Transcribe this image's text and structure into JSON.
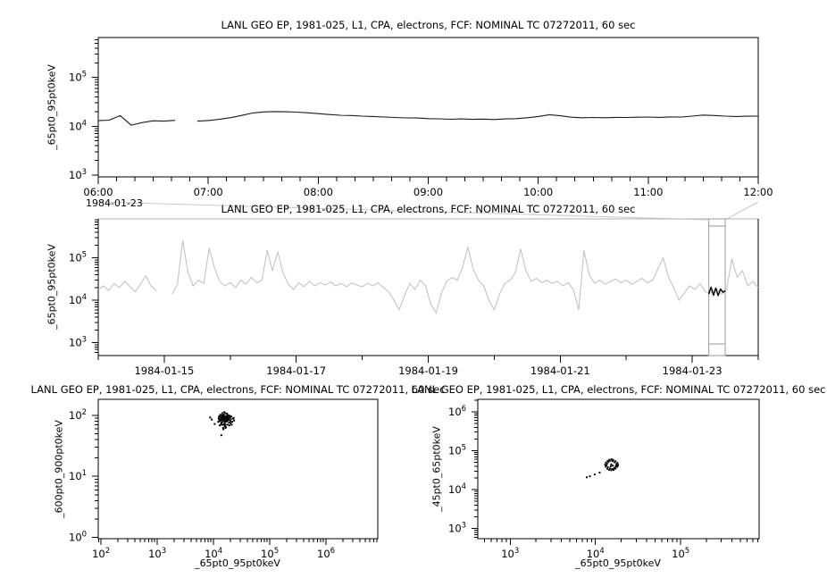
{
  "page": {
    "background": "#ffffff"
  },
  "colors": {
    "axis": "#000000",
    "top_series": "#1a1a1a",
    "overview_series": "#c4c4c4",
    "highlight_series": "#000000",
    "selection_box": "#ababab",
    "connector": "#c9c9c9"
  },
  "chart_data": [
    {
      "id": "top",
      "type": "line",
      "title": "LANL GEO EP, 1981-025, L1, CPA, electrons, FCF: NOMINAL TC 07272011, 60 sec",
      "ylabel": "_65pt0_95pt0keV",
      "x_context_label": "1984-01-23",
      "x_axis": {
        "min": 6,
        "max": 12,
        "major_step": 1,
        "minor_step": 0.16667,
        "tick_labels": [
          "06:00",
          "07:00",
          "08:00",
          "09:00",
          "10:00",
          "11:00",
          "12:00"
        ]
      },
      "y_axis": {
        "log": true,
        "min_exp": 2.96,
        "max_exp": 5.82,
        "decade_ticks": [
          3,
          4,
          5
        ]
      },
      "series": {
        "x_start": 6.0,
        "dx": 0.1,
        "values": [
          13000,
          13300,
          16500,
          10500,
          11900,
          12900,
          12700,
          13200,
          null,
          12700,
          13100,
          13800,
          14900,
          16600,
          18600,
          19600,
          20000,
          19800,
          19500,
          18900,
          18100,
          17400,
          16800,
          16600,
          16100,
          15800,
          15400,
          15100,
          14800,
          14700,
          14300,
          14200,
          13900,
          14100,
          13800,
          14000,
          13700,
          14100,
          14300,
          14900,
          15800,
          17200,
          16400,
          15300,
          14900,
          15100,
          14900,
          15200,
          15100,
          15300,
          15400,
          15200,
          15500,
          15400,
          16100,
          16900,
          16600,
          16100,
          15800,
          16000,
          16100
        ]
      }
    },
    {
      "id": "overview",
      "type": "line",
      "title": "LANL GEO EP, 1981-025, L1, CPA, electrons, FCF: NOMINAL TC 07272011, 60 sec",
      "ylabel": "_65pt0_95pt0keV",
      "x_axis": {
        "min": 14,
        "max": 24,
        "major_start": 15,
        "major_step": 2,
        "minor_step": 1,
        "tick_labels": [
          "1984-01-15",
          "1984-01-17",
          "1984-01-19",
          "1984-01-21",
          "1984-01-23"
        ]
      },
      "y_axis": {
        "log": true,
        "min_exp": 2.7,
        "max_exp": 5.92,
        "decade_ticks": [
          3,
          4,
          5
        ]
      },
      "series": {
        "x_start": 14.0,
        "dx": 0.08,
        "values": [
          18000,
          22000,
          17000,
          25000,
          20000,
          28000,
          21000,
          16000,
          24000,
          38000,
          22000,
          17000,
          null,
          null,
          14000,
          24000,
          260000,
          45000,
          22000,
          30000,
          25000,
          170000,
          60000,
          28000,
          22000,
          26000,
          20000,
          30000,
          24000,
          35000,
          26000,
          30000,
          150000,
          50000,
          140000,
          45000,
          24000,
          18000,
          26000,
          21000,
          28000,
          22000,
          26000,
          23000,
          27000,
          22000,
          25000,
          21000,
          26000,
          23000,
          21000,
          25000,
          22000,
          26000,
          20000,
          16000,
          10000,
          6000,
          13000,
          25000,
          18000,
          30000,
          22000,
          8000,
          5000,
          15000,
          28000,
          35000,
          30000,
          60000,
          180000,
          55000,
          30000,
          22000,
          10000,
          6000,
          14000,
          25000,
          30000,
          45000,
          160000,
          50000,
          28000,
          33000,
          26000,
          30000,
          25000,
          28000,
          22000,
          26000,
          18000,
          6000,
          150000,
          40000,
          25000,
          30000,
          24000,
          28000,
          32000,
          26000,
          30000,
          24000,
          28000,
          33000,
          26000,
          30000,
          55000,
          100000,
          35000,
          20000,
          10000,
          15000,
          22000,
          18000,
          25000,
          16000,
          15000,
          19000,
          14000,
          17000,
          95000,
          35000,
          50000,
          22000,
          28000,
          20000
        ]
      },
      "highlight": {
        "x_start": 23.25,
        "dx": 0.0357,
        "values": [
          14000,
          20500,
          13200,
          19500,
          13000,
          18500,
          15500,
          16800
        ]
      },
      "selection": {
        "x_min": 23.25,
        "x_max": 23.5
      }
    },
    {
      "id": "scatter-left",
      "type": "scatter",
      "title": "LANL GEO EP, 1981-025, L1, CPA, electrons, FCF: NOMINAL TC 07272011, 60 sec",
      "xlabel": "_65pt0_95pt0keV",
      "ylabel": "_600pt0_900pt0keV",
      "x_axis": {
        "log": true,
        "min_exp": 1.95,
        "max_exp": 6.92,
        "decade_ticks": [
          2,
          3,
          4,
          5,
          6
        ]
      },
      "y_axis": {
        "log": true,
        "min_exp": -0.02,
        "max_exp": 2.26,
        "decade_ticks": [
          0,
          1,
          2
        ]
      },
      "points": [
        [
          15800,
          88
        ],
        [
          14200,
          95
        ],
        [
          16800,
          79
        ],
        [
          13200,
          102
        ],
        [
          17500,
          90
        ],
        [
          15100,
          70
        ],
        [
          18400,
          84
        ],
        [
          12400,
          86
        ],
        [
          16200,
          108
        ],
        [
          14800,
          62
        ],
        [
          19600,
          92
        ],
        [
          13800,
          75
        ],
        [
          17000,
          98
        ],
        [
          15500,
          112
        ],
        [
          12900,
          68
        ],
        [
          18900,
          76
        ],
        [
          16500,
          64
        ],
        [
          14400,
          108
        ],
        [
          20400,
          86
        ],
        [
          13500,
          90
        ],
        [
          17800,
          70
        ],
        [
          15200,
          96
        ],
        [
          21500,
          78
        ],
        [
          12100,
          78
        ],
        [
          16000,
          90
        ],
        [
          14000,
          84
        ],
        [
          18200,
          100
        ],
        [
          15700,
          74
        ],
        [
          13000,
          94
        ],
        [
          17200,
          84
        ],
        [
          19200,
          68
        ],
        [
          14600,
          100
        ],
        [
          16400,
          88
        ],
        [
          12600,
          96
        ],
        [
          20800,
          95
        ],
        [
          15400,
          80
        ],
        [
          18600,
          92
        ],
        [
          13400,
          82
        ],
        [
          17400,
          106
        ],
        [
          15000,
          90
        ],
        [
          22300,
          88
        ],
        [
          14100,
          70
        ],
        [
          16700,
          96
        ],
        [
          13700,
          100
        ],
        [
          19900,
          80
        ],
        [
          15900,
          66
        ],
        [
          18000,
          88
        ],
        [
          12300,
          90
        ],
        [
          16100,
          78
        ],
        [
          14500,
          88
        ],
        [
          21000,
          70
        ],
        [
          15300,
          102
        ],
        [
          17600,
          80
        ],
        [
          13100,
          86
        ],
        [
          18800,
          86
        ],
        [
          15600,
          94
        ],
        [
          23200,
          82
        ],
        [
          14300,
          78
        ],
        [
          16900,
          90
        ],
        [
          13900,
          92
        ],
        [
          20000,
          74
        ],
        [
          15100,
          84
        ],
        [
          17900,
          94
        ],
        [
          12800,
          80
        ],
        [
          16300,
          70
        ],
        [
          14700,
          92
        ],
        [
          19400,
          98
        ],
        [
          15500,
          86
        ],
        [
          22800,
          90
        ],
        [
          13600,
          72
        ],
        [
          17100,
          86
        ],
        [
          16600,
          82
        ],
        [
          9300,
          85
        ],
        [
          8700,
          92
        ],
        [
          15000,
          59
        ],
        [
          16300,
          62
        ],
        [
          13800,
          47
        ],
        [
          10500,
          72
        ]
      ]
    },
    {
      "id": "scatter-right",
      "type": "scatter",
      "title": "LANL GEO EP, 1981-025, L1, CPA, electrons, FCF: NOMINAL TC 07272011, 60 sec",
      "xlabel": "_65pt0_95pt0keV",
      "ylabel": "_45pt0_65pt0keV",
      "x_axis": {
        "log": true,
        "min_exp": 2.62,
        "max_exp": 5.92,
        "decade_ticks": [
          3,
          4,
          5
        ]
      },
      "y_axis": {
        "log": true,
        "min_exp": 2.74,
        "max_exp": 6.32,
        "decade_ticks": [
          3,
          4,
          5,
          6
        ]
      },
      "points": [
        [
          18400,
          43500
        ],
        [
          18100,
          48500
        ],
        [
          17200,
          53800
        ],
        [
          16200,
          57900
        ],
        [
          15500,
          60000
        ],
        [
          14600,
          58600
        ],
        [
          13900,
          54800
        ],
        [
          13300,
          49500
        ],
        [
          13000,
          44000
        ],
        [
          13200,
          39000
        ],
        [
          13800,
          34500
        ],
        [
          14500,
          32200
        ],
        [
          15400,
          31400
        ],
        [
          16300,
          32300
        ],
        [
          17200,
          34800
        ],
        [
          17900,
          38700
        ],
        [
          18300,
          41500
        ],
        [
          17700,
          45800
        ],
        [
          16800,
          50500
        ],
        [
          15900,
          54000
        ],
        [
          15000,
          55500
        ],
        [
          14200,
          52000
        ],
        [
          13700,
          47000
        ],
        [
          13500,
          42000
        ],
        [
          14000,
          37500
        ],
        [
          14800,
          34800
        ],
        [
          15700,
          34000
        ],
        [
          16600,
          36000
        ],
        [
          17300,
          39500
        ],
        [
          17600,
          43000
        ],
        [
          15300,
          44500
        ],
        [
          16000,
          41500
        ],
        [
          15100,
          40000
        ],
        [
          11200,
          27500
        ],
        [
          9800,
          24500
        ],
        [
          8600,
          22000
        ],
        [
          7900,
          20700
        ]
      ]
    }
  ]
}
